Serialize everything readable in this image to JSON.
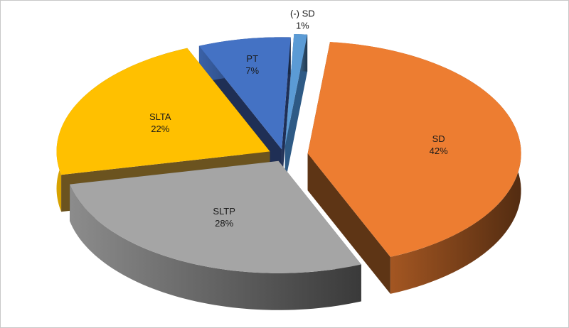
{
  "chart_data": {
    "type": "pie",
    "variant": "3d-exploded",
    "title": "",
    "legend": "none",
    "slices": [
      {
        "label": "SD",
        "value": 42,
        "pct_text": "42%",
        "color": "#ED7D31",
        "side": "#5E3515",
        "text_color": "#1a1a1a"
      },
      {
        "label": "SLTP",
        "value": 28,
        "pct_text": "28%",
        "color": "#A5A5A5",
        "side": "#4a4a4a",
        "text_color": "#1a1a1a"
      },
      {
        "label": "SLTA",
        "value": 22,
        "pct_text": "22%",
        "color": "#FFC000",
        "side": "#6B531F",
        "text_color": "#1a1a1a"
      },
      {
        "label": "PT",
        "value": 7,
        "pct_text": "7%",
        "color": "#4472C4",
        "side": "#1F2F55",
        "text_color": "#1a1a1a"
      },
      {
        "label": "(-) SD",
        "value": 1,
        "pct_text": "1%",
        "color": "#5B9BD5",
        "side": "#2E5A85",
        "text_color": "#1a1a1a"
      }
    ]
  }
}
